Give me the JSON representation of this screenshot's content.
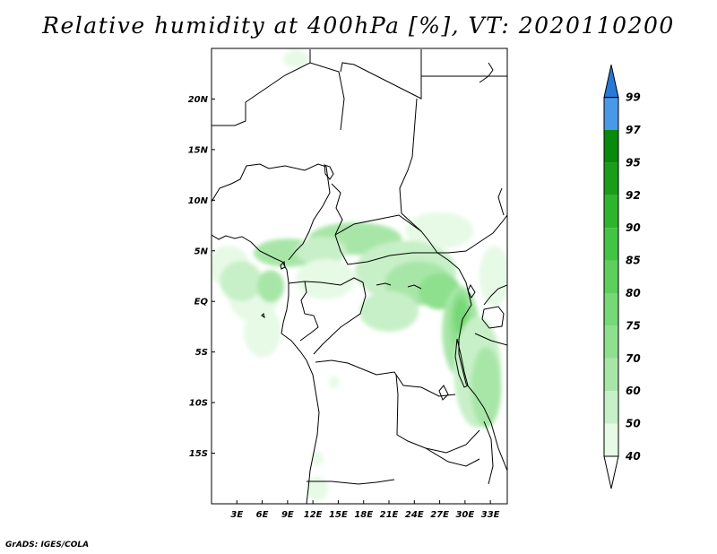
{
  "title": "Relative humidity at 400hPa [%], VT: 2020110200",
  "credit": "GrADS: IGES/COLA",
  "map": {
    "lon_range": [
      0,
      35
    ],
    "lat_range": [
      -20,
      25
    ],
    "lat_ticks": [
      {
        "value": 20,
        "label": "20N"
      },
      {
        "value": 15,
        "label": "15N"
      },
      {
        "value": 10,
        "label": "10N"
      },
      {
        "value": 5,
        "label": "5N"
      },
      {
        "value": 0,
        "label": "EQ"
      },
      {
        "value": -5,
        "label": "5S"
      },
      {
        "value": -10,
        "label": "10S"
      },
      {
        "value": -15,
        "label": "15S"
      }
    ],
    "lon_ticks": [
      {
        "value": 3,
        "label": "3E"
      },
      {
        "value": 6,
        "label": "6E"
      },
      {
        "value": 9,
        "label": "9E"
      },
      {
        "value": 12,
        "label": "12E"
      },
      {
        "value": 15,
        "label": "15E"
      },
      {
        "value": 18,
        "label": "18E"
      },
      {
        "value": 21,
        "label": "21E"
      },
      {
        "value": 24,
        "label": "24E"
      },
      {
        "value": 27,
        "label": "27E"
      },
      {
        "value": 30,
        "label": "30E"
      },
      {
        "value": 33,
        "label": "33E"
      }
    ]
  },
  "colorbar": {
    "levels": [
      "40",
      "50",
      "60",
      "70",
      "75",
      "80",
      "85",
      "90",
      "92",
      "95",
      "97",
      "99"
    ],
    "colors": [
      "#e6fae6",
      "#c8f0c8",
      "#a8e6a8",
      "#8ee08e",
      "#76d876",
      "#5ccf5c",
      "#44c444",
      "#2eb52e",
      "#1a9e1a",
      "#0a8a0a",
      "#4a98e8",
      "#2878d8",
      "#1858b8"
    ],
    "lower_extend_color": "#ffffff"
  },
  "humidity_field": [
    {
      "level": 40,
      "lon": 2.0,
      "lat": 3.5,
      "rx": 2.5,
      "ry": 2.0
    },
    {
      "level": 40,
      "lon": 5.0,
      "lat": 0.5,
      "rx": 3.0,
      "ry": 2.5
    },
    {
      "level": 40,
      "lon": 6.0,
      "lat": -3.0,
      "rx": 2.2,
      "ry": 2.5
    },
    {
      "level": 50,
      "lon": 3.5,
      "lat": 2.0,
      "rx": 2.5,
      "ry": 2.0
    },
    {
      "level": 60,
      "lon": 9.0,
      "lat": 4.8,
      "rx": 4.0,
      "ry": 1.4
    },
    {
      "level": 60,
      "lon": 17.0,
      "lat": 6.2,
      "rx": 5.5,
      "ry": 1.6
    },
    {
      "level": 40,
      "lon": 27.0,
      "lat": 7.0,
      "rx": 4.0,
      "ry": 1.8
    },
    {
      "level": 50,
      "lon": 13.0,
      "lat": 5.0,
      "rx": 3.0,
      "ry": 1.4
    },
    {
      "level": 40,
      "lon": 13.5,
      "lat": 2.2,
      "rx": 3.5,
      "ry": 2.0
    },
    {
      "level": 60,
      "lon": 7.0,
      "lat": 1.5,
      "rx": 1.6,
      "ry": 1.6
    },
    {
      "level": 50,
      "lon": 23.0,
      "lat": 3.0,
      "rx": 6.0,
      "ry": 3.0
    },
    {
      "level": 60,
      "lon": 24.5,
      "lat": 1.8,
      "rx": 4.0,
      "ry": 2.2
    },
    {
      "level": 70,
      "lon": 27.0,
      "lat": 1.0,
      "rx": 2.5,
      "ry": 1.8
    },
    {
      "level": 50,
      "lon": 21.0,
      "lat": -1.0,
      "rx": 3.5,
      "ry": 2.0
    },
    {
      "level": 60,
      "lon": 29.5,
      "lat": -3.0,
      "rx": 2.2,
      "ry": 4.5
    },
    {
      "level": 70,
      "lon": 29.5,
      "lat": -2.0,
      "rx": 1.3,
      "ry": 3.0
    },
    {
      "level": 75,
      "lon": 29.5,
      "lat": -1.5,
      "rx": 0.8,
      "ry": 1.8
    },
    {
      "level": 50,
      "lon": 31.5,
      "lat": -7.0,
      "rx": 2.8,
      "ry": 5.5
    },
    {
      "level": 60,
      "lon": 32.5,
      "lat": -8.5,
      "rx": 1.8,
      "ry": 4.0
    },
    {
      "level": 40,
      "lon": 33.5,
      "lat": 2.5,
      "rx": 1.8,
      "ry": 3.0
    },
    {
      "level": 40,
      "lon": 12.5,
      "lat": -18.5,
      "rx": 1.3,
      "ry": 1.2
    },
    {
      "level": 40,
      "lon": 12.5,
      "lat": -15.5,
      "rx": 0.7,
      "ry": 0.7
    },
    {
      "level": 40,
      "lon": 14.5,
      "lat": -8.0,
      "rx": 0.6,
      "ry": 0.6
    },
    {
      "level": 40,
      "lon": 10.0,
      "lat": 24.0,
      "rx": 1.5,
      "ry": 0.9
    }
  ]
}
